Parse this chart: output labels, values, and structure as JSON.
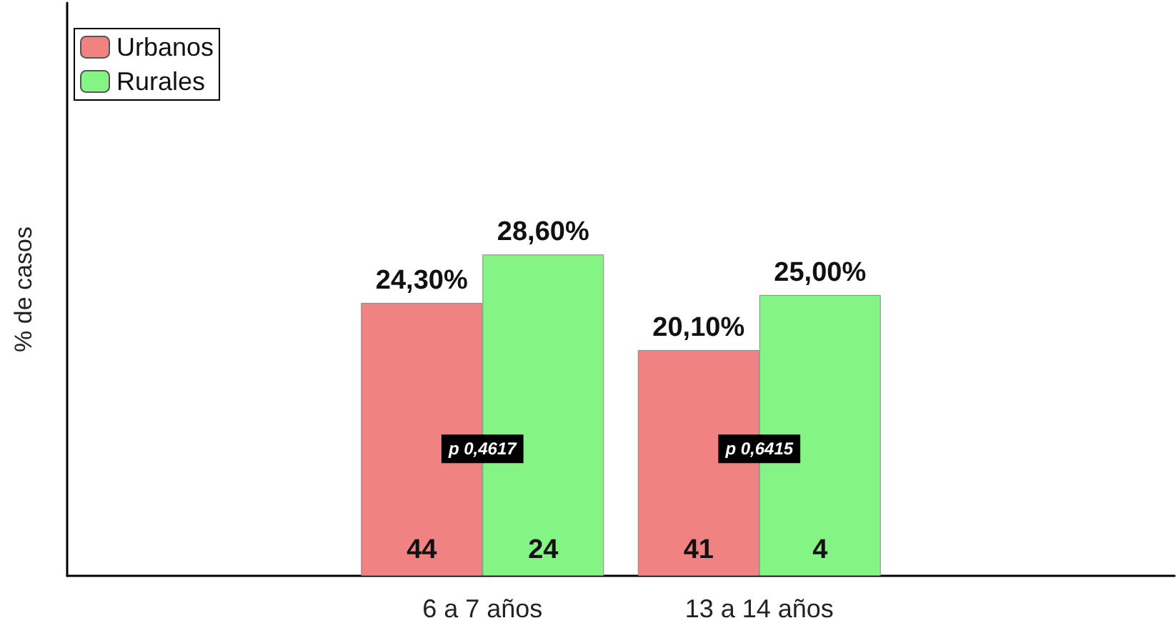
{
  "chart_data": {
    "type": "bar",
    "ylabel": "% de casos",
    "categories": [
      null,
      "6 a 7 años",
      "13 a 14 años",
      null
    ],
    "series": [
      {
        "name": "Urbanos",
        "color": "#f08282",
        "values": [
          null,
          24.3,
          20.1,
          null
        ],
        "value_labels": [
          null,
          "24,30%",
          "20,10%",
          null
        ]
      },
      {
        "name": "Rurales",
        "color": "#84f484",
        "values": [
          null,
          28.6,
          25.0,
          null
        ],
        "value_labels": [
          null,
          "28,60%",
          "25,00%",
          null
        ]
      }
    ],
    "ylim": [
      0,
      51
    ],
    "tick_labels": "x",
    "grid": false,
    "legend": "top left",
    "annotations": [
      {
        "text": "44",
        "x": "6 a 7 años",
        "y": 2.3
      },
      {
        "text": "24",
        "x": "6 a 7 años",
        "y": 2.3
      },
      {
        "text": "41",
        "x": "13 a 14 años",
        "y": 2.3
      },
      {
        "text": "4",
        "x": "13 a 14 años",
        "y": 2.3
      },
      {
        "text": "p 0,4617",
        "x": "6 a 7 años",
        "y": 11.3
      },
      {
        "text": "p 0,6415",
        "x": "13 a 14 años",
        "y": 11.3
      }
    ]
  }
}
